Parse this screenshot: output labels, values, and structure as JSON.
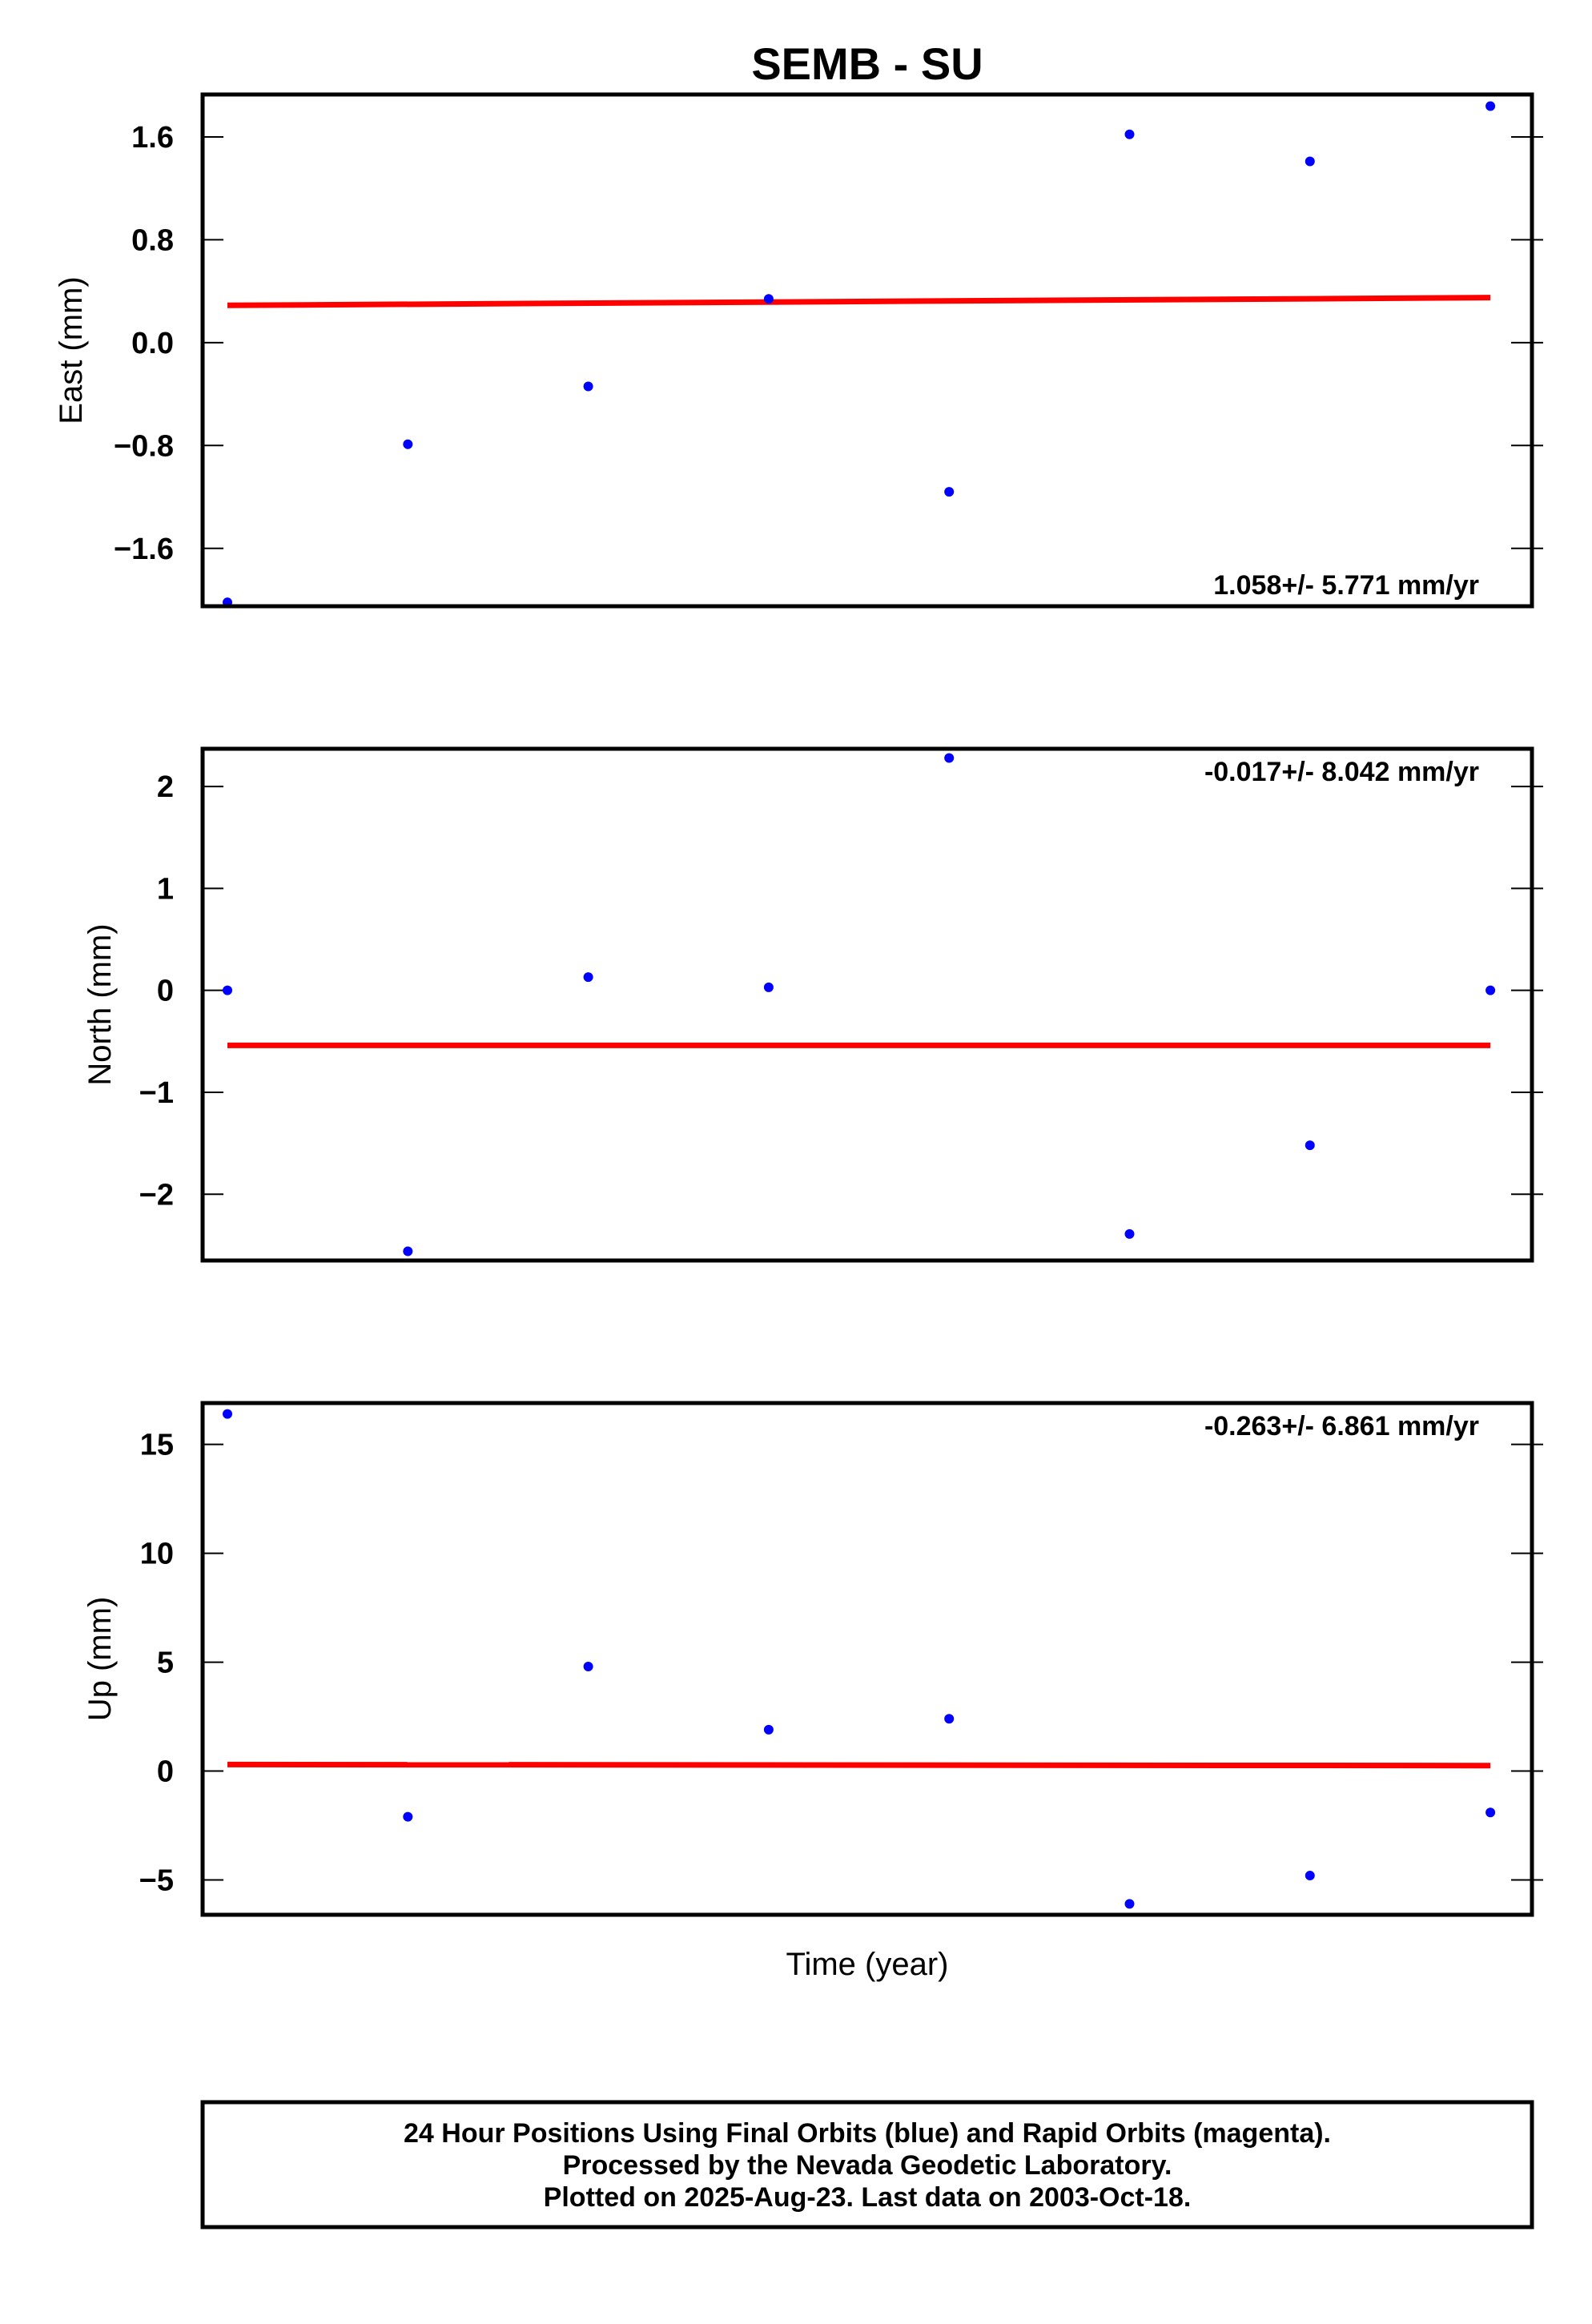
{
  "title": "SEMB - SU",
  "xlabel": "Time (year)",
  "footer": [
    "24 Hour Positions Using Final Orbits (blue) and Rapid Orbits (magenta).",
    "Processed by the Nevada Geodetic Laboratory.",
    "Plotted on 2025-Aug-23. Last data on 2003-Oct-18."
  ],
  "colors": {
    "points": "#0000ff",
    "fit": "#ff0000",
    "axes": "#000000"
  },
  "chart_data": [
    {
      "type": "scatter",
      "ylabel": "East (mm)",
      "ylim": [
        -2.05,
        1.93
      ],
      "yticks": [
        1.6,
        0.8,
        0.0,
        -0.8,
        -1.6
      ],
      "ytick_labels": [
        "1.6",
        "0.8",
        "0.0",
        "−0.8",
        "−1.6"
      ],
      "rate_label": "1.058+/- 5.771 mm/yr",
      "rate_position": "bottom-right",
      "x": [
        1,
        2,
        3,
        4,
        5,
        6,
        7,
        8
      ],
      "values": [
        -2.02,
        -0.79,
        -0.34,
        0.34,
        -1.16,
        1.62,
        1.41,
        1.84
      ],
      "fit": [
        0.29,
        0.35
      ]
    },
    {
      "type": "scatter",
      "ylabel": "North (mm)",
      "ylim": [
        -2.65,
        2.37
      ],
      "yticks": [
        2,
        1,
        0,
        -1,
        -2
      ],
      "ytick_labels": [
        "2",
        "1",
        "0",
        "−1",
        "−2"
      ],
      "rate_label": "-0.017+/- 8.042 mm/yr",
      "rate_position": "top-right",
      "x": [
        1,
        2,
        3,
        4,
        5,
        6,
        7,
        8
      ],
      "values": [
        0.0,
        -2.56,
        0.13,
        0.03,
        2.28,
        -2.39,
        -1.52,
        0.0
      ],
      "fit": [
        -0.54,
        -0.54
      ]
    },
    {
      "type": "scatter",
      "ylabel": "Up (mm)",
      "ylim": [
        -6.6,
        16.9
      ],
      "yticks": [
        15,
        10,
        5,
        0,
        -5
      ],
      "ytick_labels": [
        "15",
        "10",
        "5",
        "0",
        "−5"
      ],
      "rate_label": "-0.263+/- 6.861 mm/yr",
      "rate_position": "top-right",
      "x": [
        1,
        2,
        3,
        4,
        5,
        6,
        7,
        8
      ],
      "values": [
        16.4,
        -2.1,
        4.8,
        1.9,
        2.4,
        -6.1,
        -4.8,
        -1.9
      ],
      "fit": [
        0.3,
        0.25
      ]
    }
  ]
}
